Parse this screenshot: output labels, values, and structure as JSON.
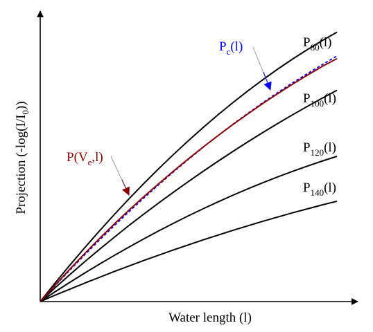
{
  "chart_data": {
    "type": "line",
    "title": "",
    "xlabel": "Water length (l)",
    "ylabel": "Projection (-log(I/I",
    "ylabel_sub": "0",
    "ylabel_tail": "))",
    "ticks": "none",
    "grid": false,
    "legend": "none",
    "x": [
      0.0,
      0.5,
      1.0,
      1.5,
      2.0,
      2.5,
      3.0,
      3.5,
      4.0,
      4.5,
      5.0,
      5.5,
      6.0,
      6.5,
      7.0,
      7.5,
      8.0,
      8.5,
      9.0,
      9.5,
      10.0
    ],
    "xlim": [
      0,
      10.7
    ],
    "ylim": [
      0,
      11.0
    ],
    "series": [
      {
        "name": "P80(l)",
        "label": {
          "main": "P",
          "sub": "80",
          "tail": "(l)"
        },
        "color": "#000000",
        "dashed": false,
        "values": [
          0,
          0.7,
          1.38,
          2.04,
          2.68,
          3.3,
          3.9,
          4.48,
          5.04,
          5.58,
          6.1,
          6.6,
          7.08,
          7.54,
          7.98,
          8.4,
          8.8,
          9.18,
          9.54,
          9.88,
          10.2
        ]
      },
      {
        "name": "P100(l)",
        "label": {
          "main": "P",
          "sub": "100",
          "tail": "(l)"
        },
        "color": "#000000",
        "dashed": false,
        "values": [
          0,
          0.52,
          1.02,
          1.51,
          1.98,
          2.44,
          2.89,
          3.32,
          3.74,
          4.15,
          4.55,
          4.94,
          5.32,
          5.69,
          6.05,
          6.4,
          6.74,
          7.07,
          7.39,
          7.7,
          8.0
        ]
      },
      {
        "name": "P120(l)",
        "label": {
          "main": "P",
          "sub": "120",
          "tail": "(l)"
        },
        "color": "#000000",
        "dashed": false,
        "values": [
          0,
          0.37,
          0.73,
          1.08,
          1.42,
          1.75,
          2.07,
          2.38,
          2.68,
          2.97,
          3.25,
          3.52,
          3.78,
          4.03,
          4.27,
          4.5,
          4.72,
          4.93,
          5.13,
          5.32,
          5.5
        ]
      },
      {
        "name": "P140(l)",
        "label": {
          "main": "P",
          "sub": "140",
          "tail": "(l)"
        },
        "color": "#000000",
        "dashed": false,
        "values": [
          0,
          0.24,
          0.47,
          0.7,
          0.92,
          1.14,
          1.35,
          1.56,
          1.76,
          1.96,
          2.15,
          2.34,
          2.52,
          2.7,
          2.87,
          3.04,
          3.2,
          3.36,
          3.51,
          3.66,
          3.8
        ]
      },
      {
        "name": "Pc(l)",
        "label": {
          "main": "P",
          "sub": "c",
          "tail": "(l)"
        },
        "color": "#0000ff",
        "dashed": true,
        "values": [
          0,
          0.6,
          1.19,
          1.77,
          2.33,
          2.88,
          3.41,
          3.93,
          4.43,
          4.92,
          5.39,
          5.85,
          6.29,
          6.72,
          7.13,
          7.53,
          7.91,
          8.28,
          8.63,
          8.97,
          9.3
        ]
      },
      {
        "name": "P(Ve,l)",
        "label": {
          "main": "P(V",
          "sub": "e",
          "tail": ",l)"
        },
        "color": "#8b0000",
        "dashed": false,
        "values": [
          0,
          0.62,
          1.23,
          1.82,
          2.39,
          2.94,
          3.47,
          3.98,
          4.47,
          4.95,
          5.41,
          5.86,
          6.29,
          6.71,
          7.11,
          7.5,
          7.87,
          8.23,
          8.57,
          8.9,
          9.2
        ]
      }
    ]
  }
}
